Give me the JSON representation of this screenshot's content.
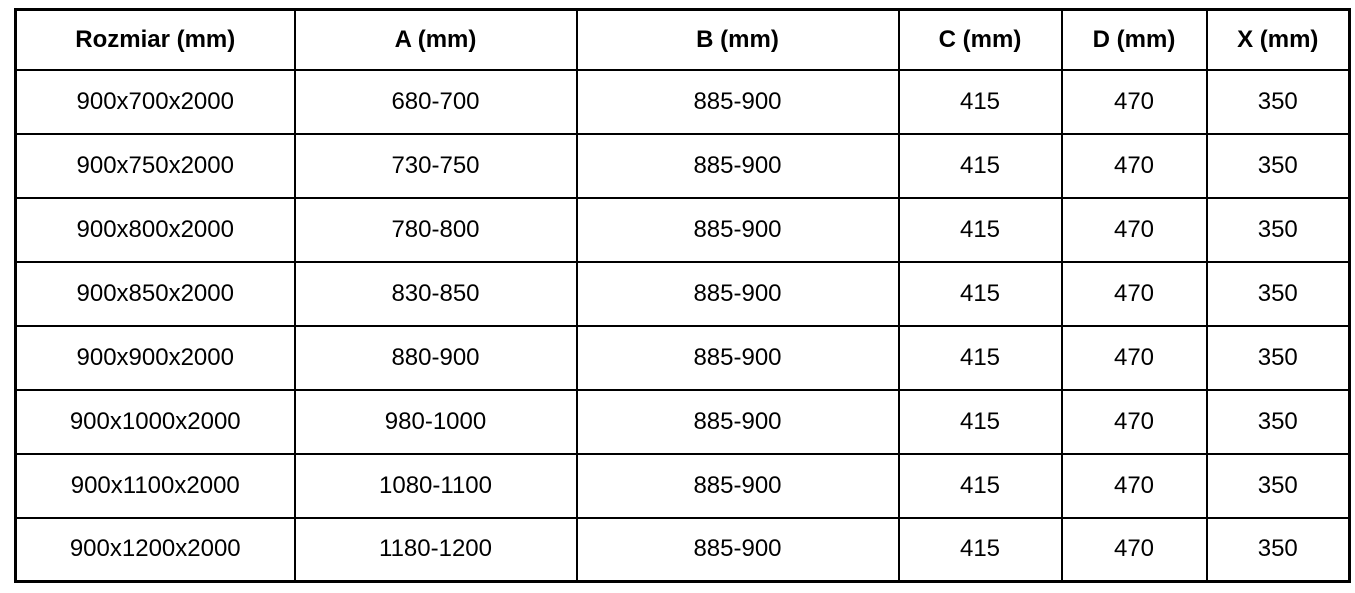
{
  "colors": {
    "border": "#000000",
    "text": "#000000",
    "background": "#ffffff"
  },
  "table": {
    "headers": [
      "Rozmiar (mm)",
      "A (mm)",
      "B (mm)",
      "C (mm)",
      "D (mm)",
      "X (mm)"
    ],
    "rows": [
      [
        "900x700x2000",
        "680-700",
        "885-900",
        "415",
        "470",
        "350"
      ],
      [
        "900x750x2000",
        "730-750",
        "885-900",
        "415",
        "470",
        "350"
      ],
      [
        "900x800x2000",
        "780-800",
        "885-900",
        "415",
        "470",
        "350"
      ],
      [
        "900x850x2000",
        "830-850",
        "885-900",
        "415",
        "470",
        "350"
      ],
      [
        "900x900x2000",
        "880-900",
        "885-900",
        "415",
        "470",
        "350"
      ],
      [
        "900x1000x2000",
        "980-1000",
        "885-900",
        "415",
        "470",
        "350"
      ],
      [
        "900x1100x2000",
        "1080-1100",
        "885-900",
        "415",
        "470",
        "350"
      ],
      [
        "900x1200x2000",
        "1180-1200",
        "885-900",
        "415",
        "470",
        "350"
      ]
    ]
  }
}
